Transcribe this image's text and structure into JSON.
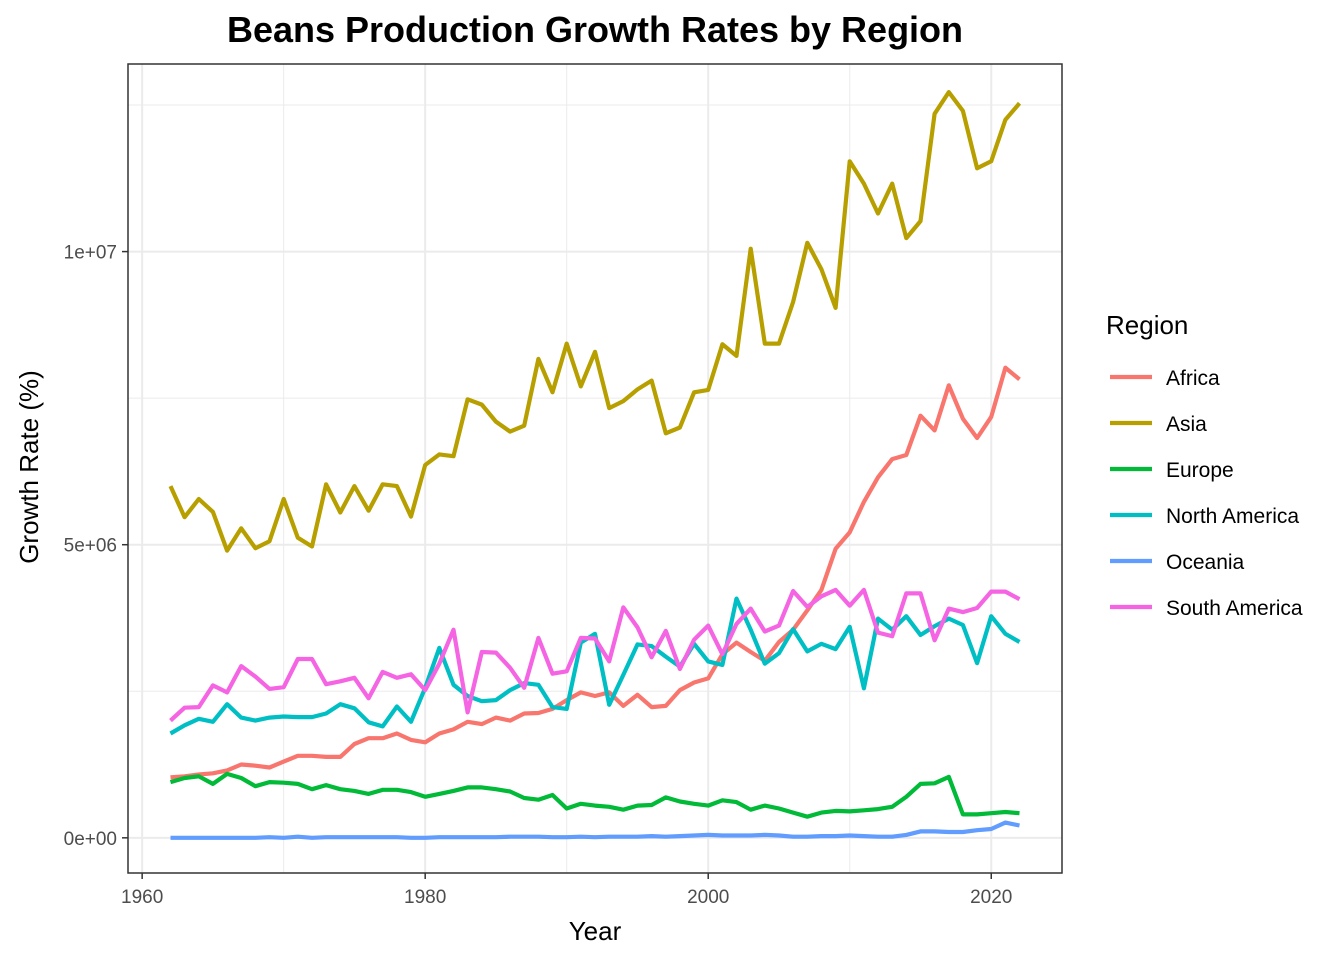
{
  "chart_data": {
    "type": "line",
    "title": "Beans Production Growth Rates by Region",
    "xlabel": "Year",
    "ylabel": "Growth Rate (%)",
    "xlim": [
      1959,
      2025
    ],
    "ylim": [
      -600000,
      13200000
    ],
    "x_ticks": [
      1960,
      1980,
      2000,
      2020
    ],
    "x_tick_labels": [
      "1960",
      "1980",
      "2000",
      "2020"
    ],
    "y_ticks": [
      0,
      5000000,
      10000000
    ],
    "y_tick_labels": [
      "0e+00",
      "5e+06",
      "1e+07"
    ],
    "grid": true,
    "legend": {
      "title": "Region",
      "position": "right"
    },
    "x": [
      1962,
      1963,
      1964,
      1965,
      1966,
      1967,
      1968,
      1969,
      1970,
      1971,
      1972,
      1973,
      1974,
      1975,
      1976,
      1977,
      1978,
      1979,
      1980,
      1981,
      1982,
      1983,
      1984,
      1985,
      1986,
      1987,
      1988,
      1989,
      1990,
      1991,
      1992,
      1993,
      1994,
      1995,
      1996,
      1997,
      1998,
      1999,
      2000,
      2001,
      2002,
      2003,
      2004,
      2005,
      2006,
      2007,
      2008,
      2009,
      2010,
      2011,
      2012,
      2013,
      2014,
      2015,
      2016,
      2017,
      2018,
      2019,
      2020,
      2021,
      2022
    ],
    "series": [
      {
        "name": "Africa",
        "color": "#F8766D",
        "values": [
          1030000,
          1050000,
          1080000,
          1100000,
          1150000,
          1250000,
          1230000,
          1200000,
          1300000,
          1400000,
          1400000,
          1380000,
          1380000,
          1600000,
          1700000,
          1700000,
          1780000,
          1670000,
          1630000,
          1780000,
          1850000,
          1980000,
          1940000,
          2050000,
          2000000,
          2120000,
          2130000,
          2200000,
          2350000,
          2480000,
          2420000,
          2480000,
          2250000,
          2440000,
          2230000,
          2250000,
          2520000,
          2650000,
          2720000,
          3130000,
          3330000,
          3170000,
          3020000,
          3340000,
          3550000,
          3880000,
          4230000,
          4930000,
          5210000,
          5730000,
          6150000,
          6460000,
          6530000,
          7200000,
          6950000,
          7720000,
          7150000,
          6820000,
          7180000,
          8020000,
          7820000
        ]
      },
      {
        "name": "Asia",
        "color": "#B79F00",
        "values": [
          6000000,
          5470000,
          5780000,
          5560000,
          4900000,
          5280000,
          4940000,
          5060000,
          5780000,
          5120000,
          4970000,
          6030000,
          5550000,
          6000000,
          5580000,
          6030000,
          6000000,
          5480000,
          6360000,
          6540000,
          6510000,
          7480000,
          7390000,
          7100000,
          6930000,
          7030000,
          8170000,
          7600000,
          8430000,
          7700000,
          8290000,
          7330000,
          7450000,
          7650000,
          7800000,
          6900000,
          7000000,
          7600000,
          7640000,
          8420000,
          8220000,
          10050000,
          8430000,
          8430000,
          9140000,
          10150000,
          9700000,
          9040000,
          11540000,
          11160000,
          10650000,
          11160000,
          10230000,
          10520000,
          12350000,
          12720000,
          12400000,
          11420000,
          11540000,
          12250000,
          12530000
        ]
      },
      {
        "name": "Europe",
        "color": "#00BA38",
        "values": [
          950000,
          1020000,
          1050000,
          920000,
          1090000,
          1020000,
          880000,
          950000,
          940000,
          920000,
          830000,
          900000,
          830000,
          800000,
          750000,
          820000,
          820000,
          780000,
          700000,
          750000,
          800000,
          860000,
          860000,
          830000,
          790000,
          680000,
          650000,
          730000,
          500000,
          580000,
          550000,
          530000,
          480000,
          550000,
          560000,
          690000,
          620000,
          580000,
          550000,
          640000,
          610000,
          480000,
          550000,
          500000,
          430000,
          360000,
          430000,
          460000,
          450000,
          470000,
          490000,
          530000,
          700000,
          920000,
          930000,
          1040000,
          400000,
          400000,
          420000,
          440000,
          420000
        ]
      },
      {
        "name": "North America",
        "color": "#00BFC4",
        "values": [
          1780000,
          1920000,
          2030000,
          1980000,
          2280000,
          2050000,
          2000000,
          2050000,
          2070000,
          2060000,
          2060000,
          2120000,
          2280000,
          2210000,
          1970000,
          1900000,
          2240000,
          1980000,
          2560000,
          3240000,
          2610000,
          2420000,
          2330000,
          2350000,
          2520000,
          2640000,
          2610000,
          2230000,
          2200000,
          3330000,
          3480000,
          2270000,
          2780000,
          3300000,
          3270000,
          3090000,
          2920000,
          3310000,
          3010000,
          2950000,
          4080000,
          3550000,
          2970000,
          3150000,
          3560000,
          3180000,
          3310000,
          3220000,
          3600000,
          2550000,
          3740000,
          3550000,
          3780000,
          3460000,
          3610000,
          3740000,
          3630000,
          2980000,
          3780000,
          3480000,
          3340000
        ]
      },
      {
        "name": "Oceania",
        "color": "#619CFF",
        "values": [
          0,
          0,
          0,
          0,
          0,
          0,
          0,
          10000,
          0,
          20000,
          0,
          10000,
          10000,
          10000,
          10000,
          10000,
          10000,
          0,
          0,
          10000,
          10000,
          10000,
          10000,
          10000,
          20000,
          20000,
          20000,
          10000,
          10000,
          20000,
          10000,
          20000,
          20000,
          20000,
          30000,
          20000,
          30000,
          40000,
          50000,
          40000,
          40000,
          40000,
          50000,
          40000,
          20000,
          20000,
          30000,
          30000,
          40000,
          30000,
          20000,
          20000,
          50000,
          110000,
          110000,
          100000,
          100000,
          130000,
          150000,
          260000,
          210000
        ]
      },
      {
        "name": "South America",
        "color": "#F564E3",
        "values": [
          2000000,
          2220000,
          2230000,
          2600000,
          2480000,
          2930000,
          2750000,
          2540000,
          2570000,
          3050000,
          3050000,
          2620000,
          2670000,
          2730000,
          2380000,
          2830000,
          2730000,
          2790000,
          2520000,
          2970000,
          3550000,
          2140000,
          3170000,
          3160000,
          2900000,
          2560000,
          3410000,
          2800000,
          2840000,
          3410000,
          3400000,
          3010000,
          3930000,
          3590000,
          3080000,
          3530000,
          2880000,
          3380000,
          3620000,
          3130000,
          3650000,
          3910000,
          3520000,
          3620000,
          4210000,
          3940000,
          4120000,
          4230000,
          3960000,
          4230000,
          3500000,
          3440000,
          4170000,
          4170000,
          3370000,
          3910000,
          3850000,
          3920000,
          4200000,
          4200000,
          4070000
        ]
      }
    ]
  }
}
